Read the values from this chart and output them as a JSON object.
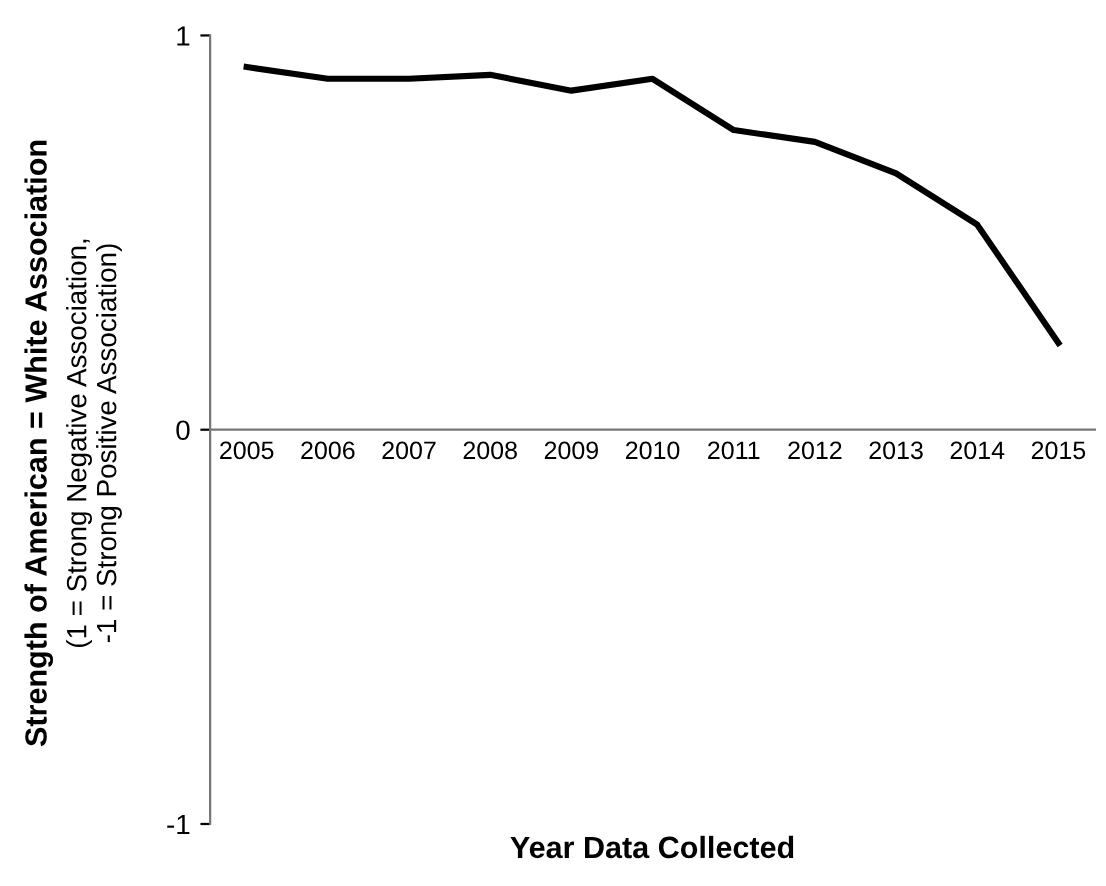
{
  "chart_data": {
    "type": "line",
    "xlabel": "Year Data Collected",
    "ylabel": "Strength of American = White Association",
    "annotations": [
      "(1 = Strong Negative Association,\n-1 = Strong Positive Association)"
    ],
    "categories": [
      "2005",
      "2006",
      "2007",
      "2008",
      "2009",
      "2010",
      "2011",
      "2012",
      "2013",
      "2014",
      "2015"
    ],
    "series": [
      {
        "color": "#000000",
        "values": [
          0.92,
          0.89,
          0.89,
          0.9,
          0.86,
          0.89,
          0.76,
          0.73,
          0.65,
          0.52,
          0.22
        ]
      }
    ],
    "ylim": [
      -1,
      1
    ],
    "yticks": [
      -1,
      0,
      1
    ],
    "grid": false,
    "legend": false,
    "marker": "none",
    "line_style": "solid"
  }
}
